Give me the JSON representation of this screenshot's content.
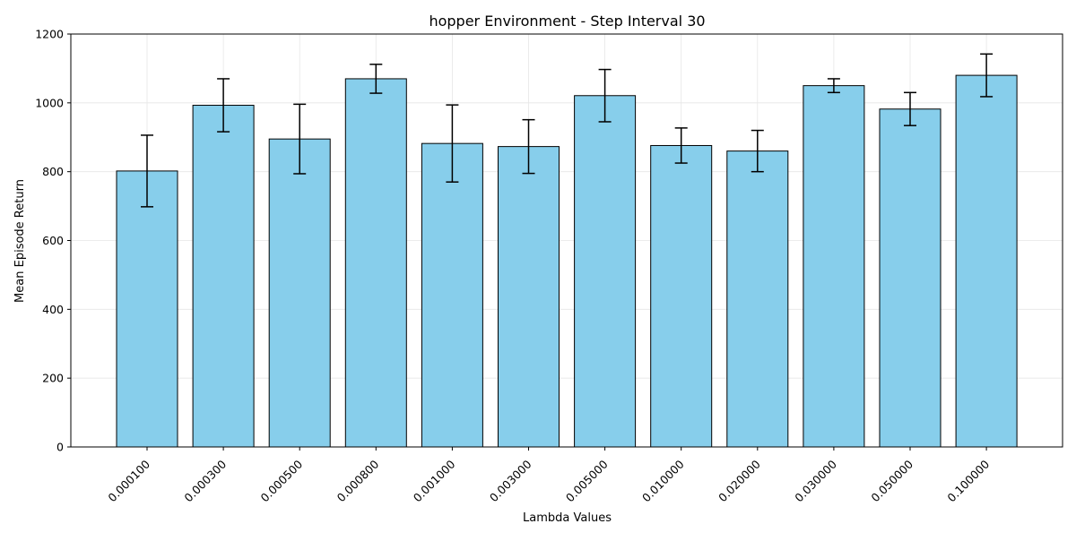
{
  "chart_data": {
    "type": "bar",
    "title": "hopper Environment - Step Interval 30",
    "xlabel": "Lambda Values",
    "ylabel": "Mean Episode Return",
    "categories": [
      "0.000100",
      "0.000300",
      "0.000500",
      "0.000800",
      "0.001000",
      "0.003000",
      "0.005000",
      "0.010000",
      "0.020000",
      "0.030000",
      "0.050000",
      "0.100000"
    ],
    "values": [
      802,
      993,
      895,
      1070,
      882,
      873,
      1021,
      876,
      860,
      1050,
      982,
      1080
    ],
    "errors": [
      104,
      77,
      101,
      42,
      112,
      78,
      76,
      51,
      60,
      20,
      48,
      62
    ],
    "ylim": [
      0,
      1200
    ],
    "yticks": [
      0,
      200,
      400,
      600,
      800,
      1000,
      1200
    ],
    "grid": true,
    "colors": {
      "bar_fill": "#87ceeb",
      "bar_edge": "#000000",
      "error_bar": "#000000",
      "grid": "#e6e6e6"
    }
  }
}
